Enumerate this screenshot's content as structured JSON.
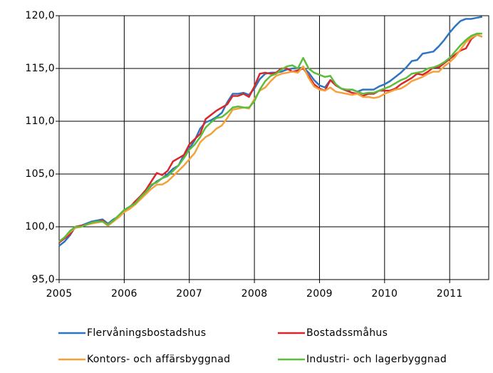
{
  "chart_data": {
    "type": "line",
    "categories": [
      "2005",
      null,
      null,
      null,
      null,
      null,
      null,
      null,
      null,
      null,
      null,
      null,
      "2006",
      null,
      null,
      null,
      null,
      null,
      null,
      null,
      null,
      null,
      null,
      null,
      "2007",
      null,
      null,
      null,
      null,
      null,
      null,
      null,
      null,
      null,
      null,
      null,
      "2008",
      null,
      null,
      null,
      null,
      null,
      null,
      null,
      null,
      null,
      null,
      null,
      "2009",
      null,
      null,
      null,
      null,
      null,
      null,
      null,
      null,
      null,
      null,
      null,
      "2010",
      null,
      null,
      null,
      null,
      null,
      null,
      null,
      null,
      null,
      null,
      null,
      "2011",
      null,
      null,
      null,
      null,
      null,
      null
    ],
    "series": [
      {
        "name": "Flervåningsbostadshus",
        "color": "#2e75c0",
        "values": [
          98.2,
          98.6,
          99.2,
          100.0,
          100.1,
          100.3,
          100.5,
          100.6,
          100.7,
          100.3,
          100.7,
          101.0,
          101.6,
          101.9,
          102.3,
          102.8,
          103.3,
          103.9,
          104.3,
          104.6,
          105.0,
          105.5,
          105.8,
          106.8,
          107.4,
          108.2,
          109.3,
          109.9,
          110.1,
          110.4,
          110.8,
          111.8,
          112.6,
          112.6,
          112.7,
          112.5,
          113.1,
          114.0,
          114.5,
          114.6,
          114.6,
          114.7,
          114.9,
          115.0,
          115.0,
          115.1,
          114.6,
          113.9,
          113.4,
          113.2,
          113.9,
          113.5,
          113.1,
          112.9,
          113.0,
          112.8,
          113.0,
          113.0,
          113.0,
          113.3,
          113.5,
          113.8,
          114.2,
          114.6,
          115.1,
          115.7,
          115.8,
          116.4,
          116.5,
          116.6,
          117.1,
          117.7,
          118.4,
          119.0,
          119.5,
          119.7,
          119.7,
          119.8,
          119.9
        ]
      },
      {
        "name": "Bostadssmåhus",
        "color": "#d9262b",
        "values": [
          98.5,
          98.9,
          99.3,
          100.0,
          100.1,
          100.2,
          100.4,
          100.5,
          100.6,
          100.2,
          100.6,
          101.0,
          101.5,
          101.8,
          102.4,
          102.9,
          103.5,
          104.3,
          105.1,
          104.9,
          105.3,
          106.2,
          106.5,
          106.8,
          107.8,
          108.3,
          108.8,
          110.2,
          110.6,
          111.0,
          111.3,
          111.6,
          112.4,
          112.4,
          112.6,
          112.3,
          113.3,
          114.5,
          114.6,
          114.5,
          114.6,
          115.0,
          115.0,
          114.7,
          114.8,
          115.0,
          114.3,
          113.5,
          113.1,
          112.9,
          113.9,
          113.4,
          113.1,
          112.9,
          112.7,
          112.6,
          112.4,
          112.6,
          112.6,
          112.9,
          112.9,
          112.9,
          113.1,
          113.5,
          113.8,
          114.1,
          114.5,
          114.4,
          114.7,
          115.1,
          115.1,
          115.5,
          115.9,
          116.3,
          116.7,
          116.9,
          117.8,
          118.2,
          118.0
        ]
      },
      {
        "name": "Kontors- och affärsbyggnad",
        "color": "#f5a03a",
        "values": [
          98.6,
          99.0,
          99.5,
          99.9,
          100.0,
          100.2,
          100.3,
          100.4,
          100.5,
          100.1,
          100.5,
          100.9,
          101.4,
          101.7,
          102.1,
          102.6,
          103.1,
          103.6,
          104.0,
          104.0,
          104.3,
          104.8,
          105.3,
          105.8,
          106.4,
          107.0,
          108.0,
          108.5,
          108.8,
          109.3,
          109.6,
          110.3,
          111.1,
          111.2,
          111.3,
          111.2,
          112.1,
          112.9,
          113.2,
          113.8,
          114.3,
          114.5,
          114.6,
          114.7,
          114.6,
          115.2,
          114.1,
          113.3,
          113.0,
          112.9,
          113.2,
          112.8,
          112.7,
          112.6,
          112.5,
          112.6,
          112.3,
          112.3,
          112.2,
          112.3,
          112.6,
          112.8,
          113.0,
          113.1,
          113.4,
          113.8,
          114.0,
          114.2,
          114.5,
          114.7,
          114.7,
          115.2,
          115.6,
          116.1,
          116.8,
          117.5,
          117.9,
          118.2,
          118.0
        ]
      },
      {
        "name": "Industri- och lagerbyggnad",
        "color": "#5cbc3c",
        "values": [
          98.6,
          99.0,
          99.6,
          100.0,
          100.0,
          100.2,
          100.4,
          100.5,
          100.5,
          100.2,
          100.6,
          101.1,
          101.6,
          101.9,
          102.2,
          102.8,
          103.3,
          104.0,
          104.2,
          104.6,
          104.8,
          105.3,
          105.8,
          106.5,
          107.3,
          107.8,
          108.5,
          109.4,
          109.9,
          110.3,
          110.4,
          110.8,
          111.3,
          111.4,
          111.3,
          111.3,
          111.9,
          113.0,
          113.8,
          114.3,
          114.5,
          114.9,
          115.2,
          115.3,
          115.0,
          116.0,
          115.0,
          114.6,
          114.4,
          114.2,
          114.3,
          113.5,
          113.1,
          113.0,
          113.0,
          112.8,
          112.6,
          112.7,
          112.7,
          112.9,
          113.1,
          113.3,
          113.6,
          113.9,
          114.1,
          114.5,
          114.6,
          114.7,
          115.0,
          115.1,
          115.3,
          115.6,
          116.0,
          116.6,
          117.2,
          117.7,
          118.1,
          118.3,
          118.3
        ]
      }
    ],
    "ylim": [
      95,
      120
    ],
    "yticks": [
      {
        "value": 95,
        "label": "95,0"
      },
      {
        "value": 100,
        "label": "100,0"
      },
      {
        "value": 105,
        "label": "105,0"
      },
      {
        "value": 110,
        "label": "110,0"
      },
      {
        "value": 115,
        "label": "115,0"
      },
      {
        "value": 120,
        "label": "120,0"
      }
    ],
    "grid": true,
    "legend": "bottom"
  }
}
